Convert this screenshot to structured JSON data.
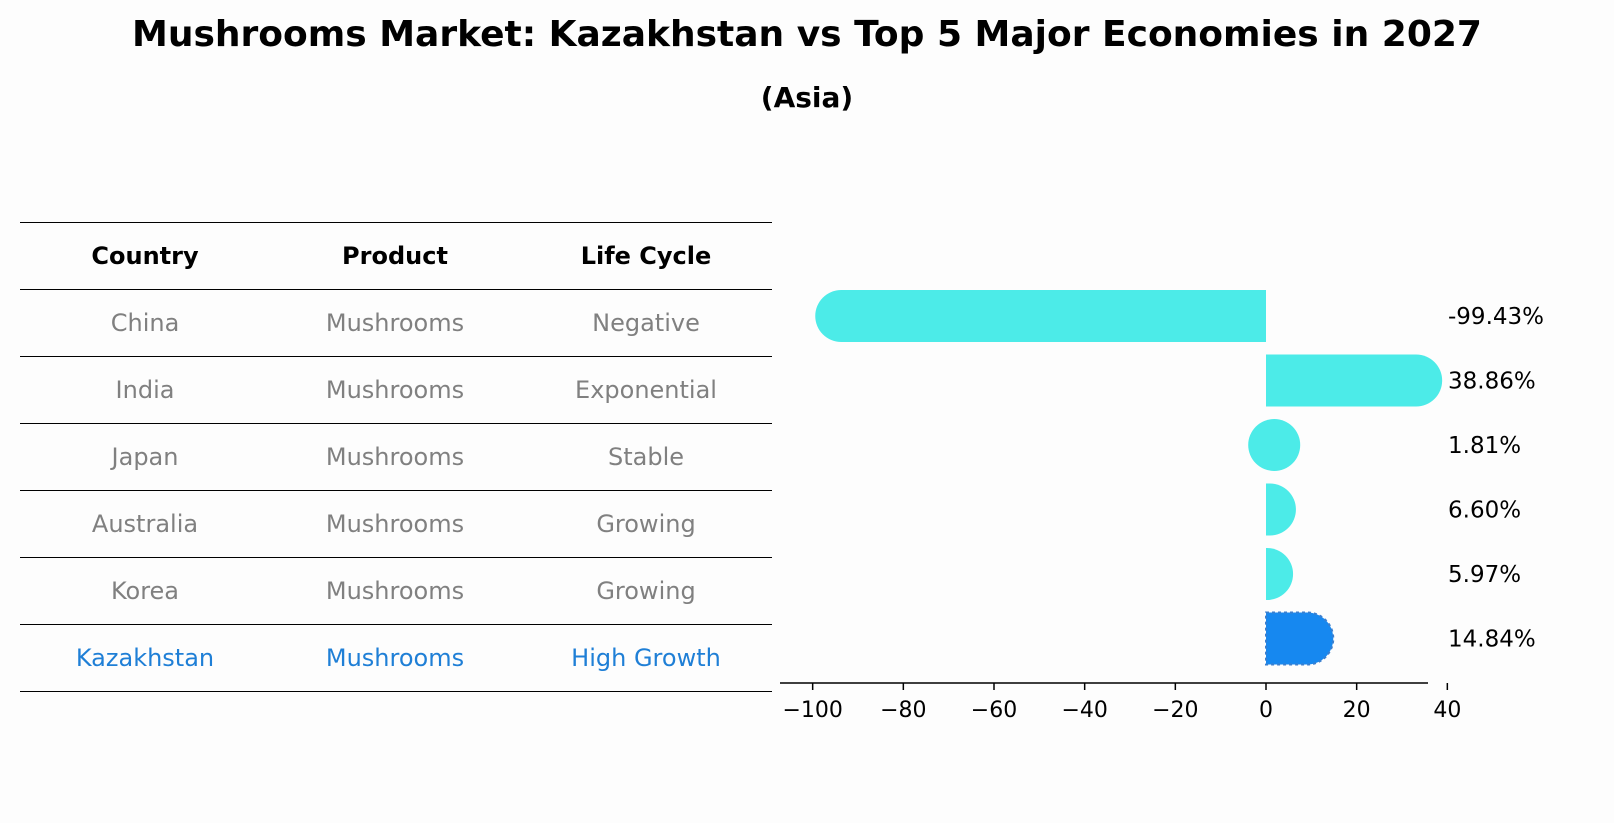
{
  "title": "Mushrooms Market: Kazakhstan vs Top 5 Major Economies in 2027",
  "subtitle": "(Asia)",
  "table": {
    "headers": [
      "Country",
      "Product",
      "Life Cycle"
    ],
    "rows": [
      [
        "China",
        "Mushrooms",
        "Negative"
      ],
      [
        "India",
        "Mushrooms",
        "Exponential"
      ],
      [
        "Japan",
        "Mushrooms",
        "Stable"
      ],
      [
        "Australia",
        "Mushrooms",
        "Growing"
      ],
      [
        "Korea",
        "Mushrooms",
        "Growing"
      ],
      [
        "Kazakhstan",
        "Mushrooms",
        "High Growth"
      ]
    ],
    "highlight_row": 5
  },
  "chart_data": {
    "type": "bar",
    "orientation": "horizontal",
    "categories": [
      "China",
      "India",
      "Japan",
      "Australia",
      "Korea",
      "Kazakhstan"
    ],
    "values": [
      -99.43,
      38.86,
      1.81,
      6.6,
      5.97,
      14.84
    ],
    "value_labels": [
      "-99.43%",
      "38.86%",
      "1.81%",
      "6.60%",
      "5.97%",
      "14.84%"
    ],
    "xlim": [
      -105,
      45
    ],
    "xticks": [
      -100,
      -80,
      -60,
      -40,
      -20,
      0,
      20,
      40
    ],
    "xtick_labels": [
      "−100",
      "−80",
      "−60",
      "−40",
      "−20",
      "0",
      "20",
      "40"
    ],
    "colors": {
      "default": "#4cebe8",
      "highlight": "#1688f0"
    },
    "highlight_index": 5
  }
}
